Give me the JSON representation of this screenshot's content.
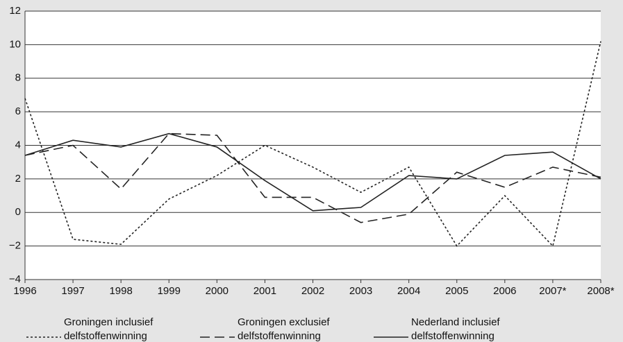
{
  "chart_data": {
    "type": "line",
    "categories": [
      "1996",
      "1997",
      "1998",
      "1999",
      "2000",
      "2001",
      "2002",
      "2003",
      "2004",
      "2005",
      "2006",
      "2007*",
      "2008*"
    ],
    "series": [
      {
        "name": "Groningen inclusief\ndelfstoffenwinning",
        "color": "#222222",
        "dash": "dotted",
        "values": [
          6.8,
          -1.6,
          -1.9,
          0.8,
          2.2,
          4.0,
          2.7,
          1.2,
          2.7,
          -2.0,
          1.0,
          -2.0,
          10.2
        ]
      },
      {
        "name": "Groningen exclusief\ndelfstoffenwinning",
        "color": "#222222",
        "dash": "dashed",
        "values": [
          3.4,
          4.0,
          1.4,
          4.7,
          4.6,
          0.9,
          0.9,
          -0.6,
          -0.1,
          2.4,
          1.5,
          2.7,
          2.1
        ]
      },
      {
        "name": "Nederland inclusief\ndelfstoffenwinning",
        "color": "#222222",
        "dash": "solid",
        "values": [
          3.4,
          4.3,
          3.9,
          4.7,
          3.9,
          1.9,
          0.1,
          0.3,
          2.2,
          2.0,
          3.4,
          3.6,
          2.0
        ]
      }
    ],
    "ylim": [
      -4,
      12
    ],
    "yticks": [
      {
        "value": -4,
        "label": "−4"
      },
      {
        "value": -2,
        "label": "−2"
      },
      0,
      2,
      4,
      6,
      8,
      10,
      12
    ],
    "grid": true,
    "legend": "bottom"
  }
}
